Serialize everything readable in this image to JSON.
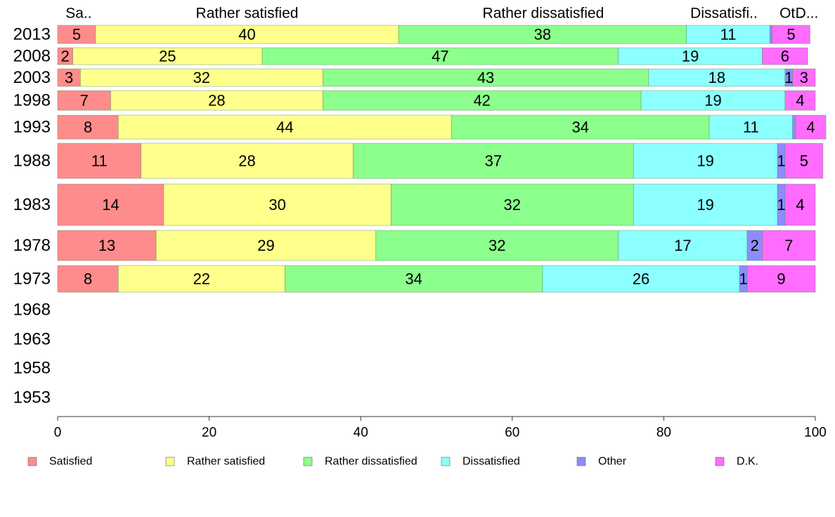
{
  "chart_data": {
    "type": "bar",
    "orientation": "horizontal",
    "stacked": true,
    "categories": [
      "2013",
      "2008",
      "2003",
      "1998",
      "1993",
      "1988",
      "1983",
      "1978",
      "1973",
      "1968",
      "1963",
      "1958",
      "1953"
    ],
    "series": [
      {
        "name": "Satisfied",
        "color": "#ff8c8c",
        "values": [
          5,
          2,
          3,
          7,
          8,
          11,
          14,
          13,
          8,
          null,
          null,
          null,
          null
        ]
      },
      {
        "name": "Rather satisfied",
        "color": "#ffff8c",
        "values": [
          40,
          25,
          32,
          28,
          44,
          28,
          30,
          29,
          22,
          null,
          null,
          null,
          null
        ]
      },
      {
        "name": "Rather dissatisfied",
        "color": "#8cff8c",
        "values": [
          38,
          47,
          43,
          42,
          34,
          37,
          32,
          32,
          34,
          null,
          null,
          null,
          null
        ]
      },
      {
        "name": "Dissatisfied",
        "color": "#8cffff",
        "values": [
          11,
          19,
          18,
          19,
          11,
          19,
          19,
          17,
          26,
          null,
          null,
          null,
          null
        ]
      },
      {
        "name": "Other",
        "color": "#8c8cff",
        "values": [
          0.3,
          0,
          1,
          0,
          0.4,
          1,
          1,
          2,
          1,
          null,
          null,
          null,
          null
        ]
      },
      {
        "name": "D.K.",
        "color": "#ff6cff",
        "values": [
          5,
          6,
          3,
          4,
          4,
          5,
          4,
          7,
          9,
          null,
          null,
          null,
          null
        ]
      }
    ],
    "hidden_labels": {
      "Other": [
        0.3,
        0.4
      ]
    },
    "top_labels": [
      "Sa..",
      "Rather satisfied",
      "Rather dissatisfied",
      "Dissatisfi..",
      "Ot..",
      "D..."
    ],
    "xlim": [
      0,
      100
    ],
    "xticks": [
      "0",
      "20",
      "40",
      "60",
      "80",
      "100"
    ],
    "legend_position": "bottom",
    "grid": false
  }
}
